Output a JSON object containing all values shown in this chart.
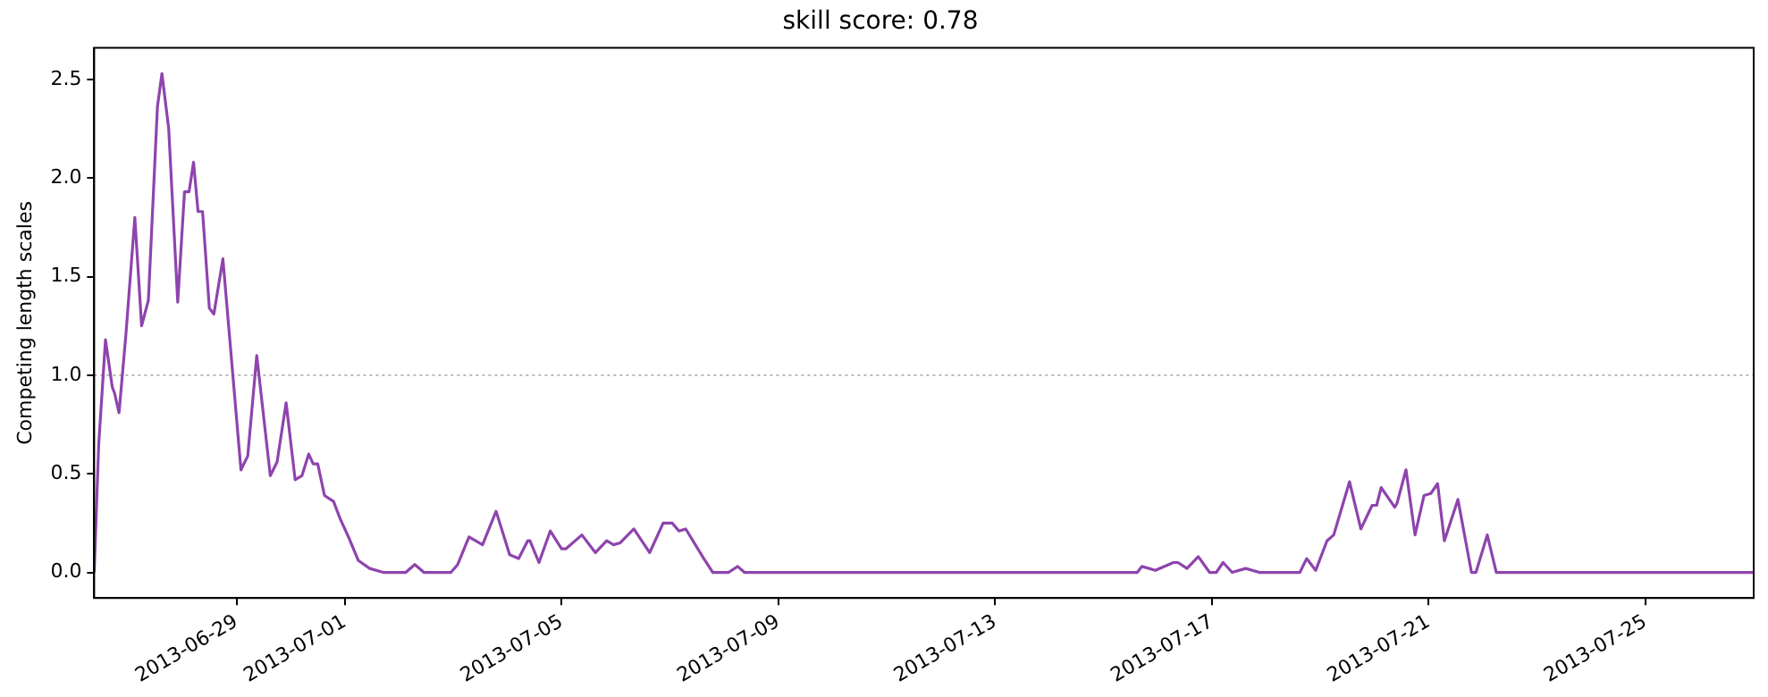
{
  "chart_data": {
    "type": "line",
    "title": "skill score: 0.78",
    "ylabel": "Competing length scales",
    "xlim": [
      "2013-06-26T09:00",
      "2013-07-27T00:00"
    ],
    "xticks": [
      "2013-06-29",
      "2013-07-01",
      "2013-07-05",
      "2013-07-09",
      "2013-07-13",
      "2013-07-17",
      "2013-07-21",
      "2013-07-25"
    ],
    "ylim": [
      -0.13,
      2.66
    ],
    "yticks": [
      {
        "value": 0,
        "label": "0.0"
      },
      {
        "value": 0.5,
        "label": "0.5"
      },
      {
        "value": 1,
        "label": "1.0"
      },
      {
        "value": 1.5,
        "label": "1.5"
      },
      {
        "value": 2,
        "label": "2.0"
      },
      {
        "value": 2.5,
        "label": "2.5"
      }
    ],
    "grid": false,
    "legend": false,
    "marker": "none",
    "line_style": "solid",
    "ref_lines": [
      {
        "axis": "y",
        "value": 1,
        "color": "#b0b0b0",
        "line_style": "dotted"
      }
    ],
    "series": [
      {
        "color": "#8e44ad",
        "x": [
          "2013-06-26T09:00",
          "2013-06-26T11:00",
          "2013-06-26T14:00",
          "2013-06-26T17:00",
          "2013-06-26T18:00",
          "2013-06-26T20:00",
          "2013-06-26T23:00",
          "2013-06-27T03:00",
          "2013-06-27T06:00",
          "2013-06-27T09:00",
          "2013-06-27T13:00",
          "2013-06-27T15:00",
          "2013-06-27T18:00",
          "2013-06-27T22:00",
          "2013-06-28T01:00",
          "2013-06-28T03:00",
          "2013-06-28T05:00",
          "2013-06-28T07:00",
          "2013-06-28T09:00",
          "2013-06-28T12:00",
          "2013-06-28T14:00",
          "2013-06-28T18:00",
          "2013-06-29T02:00",
          "2013-06-29T05:00",
          "2013-06-29T09:00",
          "2013-06-29T15:00",
          "2013-06-29T18:00",
          "2013-06-29T22:00",
          "2013-06-30T02:00",
          "2013-06-30T05:00",
          "2013-06-30T08:00",
          "2013-06-30T10:00",
          "2013-06-30T12:00",
          "2013-06-30T15:00",
          "2013-06-30T19:00",
          "2013-06-30T22:00",
          "2013-07-01T02:00",
          "2013-07-01T06:00",
          "2013-07-01T11:00",
          "2013-07-01T17:00",
          "2013-07-02T03:00",
          "2013-07-02T07:00",
          "2013-07-02T11:00",
          "2013-07-02T23:00",
          "2013-07-03T02:00",
          "2013-07-03T07:00",
          "2013-07-03T13:00",
          "2013-07-03T19:00",
          "2013-07-04T01:00",
          "2013-07-04T05:00",
          "2013-07-04T09:00",
          "2013-07-04T10:00",
          "2013-07-04T14:00",
          "2013-07-04T19:00",
          "2013-07-05T00:00",
          "2013-07-05T02:00",
          "2013-07-05T09:00",
          "2013-07-05T15:00",
          "2013-07-05T20:00",
          "2013-07-05T23:00",
          "2013-07-06T02:00",
          "2013-07-06T08:00",
          "2013-07-06T15:00",
          "2013-07-06T21:00",
          "2013-07-07T01:00",
          "2013-07-07T04:00",
          "2013-07-07T07:00",
          "2013-07-07T15:00",
          "2013-07-07T19:00",
          "2013-07-08T02:00",
          "2013-07-08T06:00",
          "2013-07-08T09:00",
          "2013-07-15T03:00",
          "2013-07-15T15:00",
          "2013-07-15T17:00",
          "2013-07-15T23:00",
          "2013-07-16T07:00",
          "2013-07-16T09:00",
          "2013-07-16T13:00",
          "2013-07-16T18:00",
          "2013-07-16T23:00",
          "2013-07-17T02:00",
          "2013-07-17T05:00",
          "2013-07-17T09:00",
          "2013-07-17T15:00",
          "2013-07-17T21:00",
          "2013-07-18T15:00",
          "2013-07-18T18:00",
          "2013-07-18T22:00",
          "2013-07-19T03:00",
          "2013-07-19T06:00",
          "2013-07-19T13:00",
          "2013-07-19T18:00",
          "2013-07-19T23:00",
          "2013-07-20T01:00",
          "2013-07-20T03:00",
          "2013-07-20T09:00",
          "2013-07-20T10:00",
          "2013-07-20T14:00",
          "2013-07-20T18:00",
          "2013-07-20T22:00",
          "2013-07-21T01:00",
          "2013-07-21T04:00",
          "2013-07-21T07:00",
          "2013-07-21T13:00",
          "2013-07-21T19:00",
          "2013-07-21T21:00",
          "2013-07-22T02:00",
          "2013-07-22T06:00",
          "2013-07-27T00:00"
        ],
        "values": [
          0,
          0.65,
          1.18,
          0.94,
          0.91,
          0.81,
          1.2,
          1.8,
          1.25,
          1.38,
          2.36,
          2.53,
          2.25,
          1.37,
          1.93,
          1.93,
          2.08,
          1.83,
          1.83,
          1.34,
          1.31,
          1.59,
          0.52,
          0.59,
          1.1,
          0.49,
          0.56,
          0.86,
          0.47,
          0.49,
          0.6,
          0.55,
          0.55,
          0.39,
          0.36,
          0.27,
          0.17,
          0.06,
          0.02,
          0,
          0,
          0.04,
          0,
          0,
          0.04,
          0.18,
          0.14,
          0.31,
          0.09,
          0.07,
          0.16,
          0.16,
          0.05,
          0.21,
          0.12,
          0.12,
          0.19,
          0.1,
          0.16,
          0.14,
          0.15,
          0.22,
          0.1,
          0.25,
          0.25,
          0.21,
          0.22,
          0.07,
          0,
          0,
          0.03,
          0,
          0,
          0,
          0.03,
          0.01,
          0.05,
          0.05,
          0.02,
          0.08,
          0,
          0,
          0.05,
          0,
          0.02,
          0,
          0,
          0.07,
          0.01,
          0.16,
          0.19,
          0.46,
          0.22,
          0.34,
          0.34,
          0.43,
          0.33,
          0.35,
          0.52,
          0.19,
          0.39,
          0.4,
          0.45,
          0.16,
          0.37,
          0,
          0,
          0.19,
          0,
          0
        ]
      }
    ]
  }
}
